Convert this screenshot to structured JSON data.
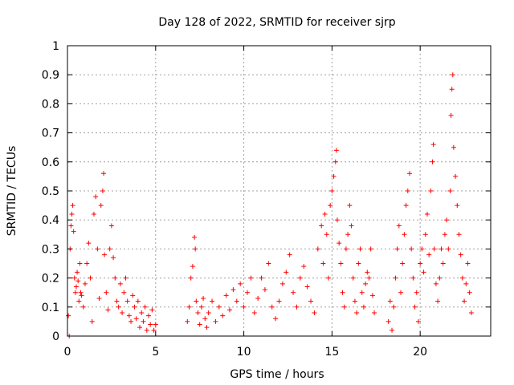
{
  "chart_data": {
    "type": "scatter",
    "title": "Day 128 of 2022, SRMTID for receiver sjrp",
    "xlabel": "GPS time / hours",
    "ylabel": "SRMTID / TECUs",
    "xlim": [
      0,
      24
    ],
    "ylim": [
      0,
      1
    ],
    "xticks": [
      0,
      5,
      10,
      15,
      20
    ],
    "yticks": [
      0,
      0.1,
      0.2,
      0.3,
      0.4,
      0.5,
      0.6,
      0.7,
      0.8,
      0.9,
      1
    ],
    "xtick_labels": [
      "0",
      "5",
      "10",
      "15",
      "20"
    ],
    "ytick_labels": [
      "0",
      "0.1",
      "0.2",
      "0.3",
      "0.4",
      "0.5",
      "0.6",
      "0.7",
      "0.8",
      "0.9",
      "1"
    ],
    "grid": true,
    "marker": "+",
    "series_color": "#ff0000",
    "series": [
      {
        "name": "SRMTID",
        "points": [
          [
            0.05,
            0.07
          ],
          [
            0.1,
            0.0
          ],
          [
            0.15,
            0.3
          ],
          [
            0.2,
            0.38
          ],
          [
            0.25,
            0.42
          ],
          [
            0.3,
            0.45
          ],
          [
            0.35,
            0.36
          ],
          [
            0.4,
            0.2
          ],
          [
            0.45,
            0.15
          ],
          [
            0.5,
            0.17
          ],
          [
            0.55,
            0.22
          ],
          [
            0.6,
            0.19
          ],
          [
            0.65,
            0.12
          ],
          [
            0.7,
            0.25
          ],
          [
            0.75,
            0.15
          ],
          [
            0.8,
            0.14
          ],
          [
            0.9,
            0.1
          ],
          [
            1.0,
            0.18
          ],
          [
            1.1,
            0.25
          ],
          [
            1.2,
            0.32
          ],
          [
            1.3,
            0.2
          ],
          [
            1.4,
            0.05
          ],
          [
            1.5,
            0.42
          ],
          [
            1.6,
            0.48
          ],
          [
            1.7,
            0.3
          ],
          [
            1.8,
            0.13
          ],
          [
            1.9,
            0.45
          ],
          [
            2.0,
            0.5
          ],
          [
            2.05,
            0.56
          ],
          [
            2.1,
            0.28
          ],
          [
            2.2,
            0.15
          ],
          [
            2.3,
            0.09
          ],
          [
            2.4,
            0.3
          ],
          [
            2.5,
            0.38
          ],
          [
            2.6,
            0.27
          ],
          [
            2.7,
            0.2
          ],
          [
            2.8,
            0.12
          ],
          [
            2.9,
            0.1
          ],
          [
            3.0,
            0.18
          ],
          [
            3.1,
            0.08
          ],
          [
            3.2,
            0.15
          ],
          [
            3.3,
            0.2
          ],
          [
            3.4,
            0.12
          ],
          [
            3.5,
            0.07
          ],
          [
            3.6,
            0.05
          ],
          [
            3.7,
            0.14
          ],
          [
            3.8,
            0.1
          ],
          [
            3.9,
            0.06
          ],
          [
            4.0,
            0.12
          ],
          [
            4.1,
            0.03
          ],
          [
            4.2,
            0.08
          ],
          [
            4.3,
            0.05
          ],
          [
            4.4,
            0.1
          ],
          [
            4.5,
            0.02
          ],
          [
            4.6,
            0.07
          ],
          [
            4.7,
            0.04
          ],
          [
            4.8,
            0.09
          ],
          [
            4.9,
            0.02
          ],
          [
            5.0,
            0.04
          ],
          [
            6.8,
            0.05
          ],
          [
            6.9,
            0.1
          ],
          [
            7.0,
            0.2
          ],
          [
            7.1,
            0.24
          ],
          [
            7.2,
            0.34
          ],
          [
            7.25,
            0.3
          ],
          [
            7.3,
            0.12
          ],
          [
            7.4,
            0.08
          ],
          [
            7.5,
            0.04
          ],
          [
            7.6,
            0.1
          ],
          [
            7.7,
            0.13
          ],
          [
            7.8,
            0.06
          ],
          [
            7.9,
            0.03
          ],
          [
            8.0,
            0.08
          ],
          [
            8.2,
            0.12
          ],
          [
            8.4,
            0.05
          ],
          [
            8.6,
            0.1
          ],
          [
            8.8,
            0.07
          ],
          [
            9.0,
            0.14
          ],
          [
            9.2,
            0.09
          ],
          [
            9.4,
            0.16
          ],
          [
            9.6,
            0.12
          ],
          [
            9.8,
            0.18
          ],
          [
            10.0,
            0.1
          ],
          [
            10.2,
            0.15
          ],
          [
            10.4,
            0.2
          ],
          [
            10.6,
            0.08
          ],
          [
            10.8,
            0.13
          ],
          [
            11.0,
            0.2
          ],
          [
            11.2,
            0.16
          ],
          [
            11.4,
            0.25
          ],
          [
            11.6,
            0.1
          ],
          [
            11.8,
            0.06
          ],
          [
            12.0,
            0.12
          ],
          [
            12.2,
            0.18
          ],
          [
            12.4,
            0.22
          ],
          [
            12.6,
            0.28
          ],
          [
            12.8,
            0.15
          ],
          [
            13.0,
            0.1
          ],
          [
            13.2,
            0.2
          ],
          [
            13.4,
            0.24
          ],
          [
            13.6,
            0.17
          ],
          [
            13.8,
            0.12
          ],
          [
            14.0,
            0.08
          ],
          [
            14.2,
            0.3
          ],
          [
            14.4,
            0.38
          ],
          [
            14.5,
            0.25
          ],
          [
            14.6,
            0.42
          ],
          [
            14.7,
            0.35
          ],
          [
            14.8,
            0.2
          ],
          [
            14.9,
            0.45
          ],
          [
            15.0,
            0.5
          ],
          [
            15.1,
            0.55
          ],
          [
            15.2,
            0.6
          ],
          [
            15.25,
            0.64
          ],
          [
            15.3,
            0.4
          ],
          [
            15.4,
            0.32
          ],
          [
            15.5,
            0.25
          ],
          [
            15.6,
            0.15
          ],
          [
            15.7,
            0.1
          ],
          [
            15.8,
            0.3
          ],
          [
            15.9,
            0.35
          ],
          [
            16.0,
            0.45
          ],
          [
            16.1,
            0.38
          ],
          [
            16.2,
            0.2
          ],
          [
            16.3,
            0.12
          ],
          [
            16.4,
            0.08
          ],
          [
            16.5,
            0.25
          ],
          [
            16.6,
            0.3
          ],
          [
            16.7,
            0.15
          ],
          [
            16.8,
            0.1
          ],
          [
            16.9,
            0.18
          ],
          [
            17.0,
            0.22
          ],
          [
            17.1,
            0.2
          ],
          [
            17.2,
            0.3
          ],
          [
            17.3,
            0.14
          ],
          [
            17.4,
            0.08
          ],
          [
            18.2,
            0.05
          ],
          [
            18.3,
            0.12
          ],
          [
            18.4,
            0.02
          ],
          [
            18.5,
            0.1
          ],
          [
            18.6,
            0.2
          ],
          [
            18.7,
            0.3
          ],
          [
            18.8,
            0.38
          ],
          [
            18.9,
            0.15
          ],
          [
            19.0,
            0.25
          ],
          [
            19.1,
            0.35
          ],
          [
            19.2,
            0.45
          ],
          [
            19.3,
            0.5
          ],
          [
            19.4,
            0.56
          ],
          [
            19.5,
            0.3
          ],
          [
            19.6,
            0.2
          ],
          [
            19.7,
            0.1
          ],
          [
            19.8,
            0.15
          ],
          [
            19.9,
            0.05
          ],
          [
            20.0,
            0.25
          ],
          [
            20.1,
            0.3
          ],
          [
            20.2,
            0.22
          ],
          [
            20.3,
            0.35
          ],
          [
            20.4,
            0.42
          ],
          [
            20.5,
            0.28
          ],
          [
            20.6,
            0.5
          ],
          [
            20.7,
            0.6
          ],
          [
            20.75,
            0.66
          ],
          [
            20.8,
            0.3
          ],
          [
            20.9,
            0.18
          ],
          [
            21.0,
            0.12
          ],
          [
            21.1,
            0.2
          ],
          [
            21.2,
            0.3
          ],
          [
            21.3,
            0.25
          ],
          [
            21.4,
            0.35
          ],
          [
            21.5,
            0.4
          ],
          [
            21.6,
            0.3
          ],
          [
            21.7,
            0.5
          ],
          [
            21.75,
            0.76
          ],
          [
            21.8,
            0.85
          ],
          [
            21.85,
            0.9
          ],
          [
            21.9,
            0.65
          ],
          [
            22.0,
            0.55
          ],
          [
            22.1,
            0.45
          ],
          [
            22.2,
            0.35
          ],
          [
            22.3,
            0.28
          ],
          [
            22.4,
            0.2
          ],
          [
            22.5,
            0.12
          ],
          [
            22.6,
            0.18
          ],
          [
            22.7,
            0.25
          ],
          [
            22.8,
            0.15
          ],
          [
            22.9,
            0.08
          ]
        ]
      }
    ]
  }
}
